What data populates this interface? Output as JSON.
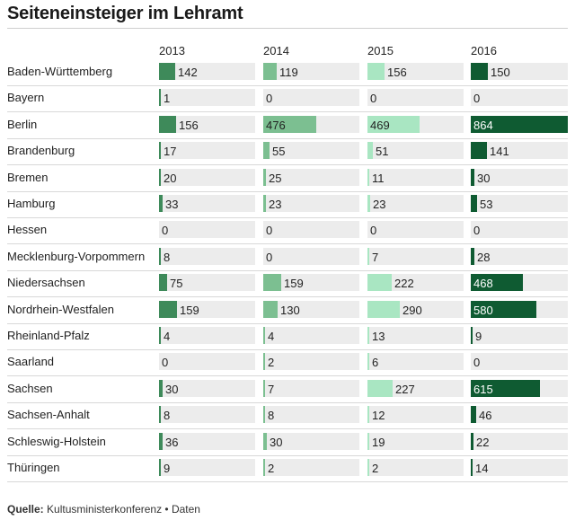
{
  "title": "Seiteneinsteiger im Lehramt",
  "source": {
    "label": "Quelle:",
    "text": "Kultusministerkonferenz • Daten"
  },
  "colors": {
    "2013": "#3e8a5a",
    "2014": "#7cbf91",
    "2015": "#a9e6c2",
    "2016": "#0f5b32",
    "cell_bg": "#ececec"
  },
  "chart_data": {
    "type": "table",
    "title": "Seiteneinsteiger im Lehramt",
    "years": [
      "2013",
      "2014",
      "2015",
      "2016"
    ],
    "max_value": 864,
    "rows": [
      {
        "state": "Baden-Württemberg",
        "values": [
          142,
          119,
          156,
          150
        ]
      },
      {
        "state": "Bayern",
        "values": [
          1,
          0,
          0,
          0
        ]
      },
      {
        "state": "Berlin",
        "values": [
          156,
          476,
          469,
          864
        ]
      },
      {
        "state": "Brandenburg",
        "values": [
          17,
          55,
          51,
          141
        ]
      },
      {
        "state": "Bremen",
        "values": [
          20,
          25,
          11,
          30
        ]
      },
      {
        "state": "Hamburg",
        "values": [
          33,
          23,
          23,
          53
        ]
      },
      {
        "state": "Hessen",
        "values": [
          0,
          0,
          0,
          0
        ]
      },
      {
        "state": "Mecklenburg-Vorpommern",
        "values": [
          8,
          0,
          7,
          28
        ]
      },
      {
        "state": "Niedersachsen",
        "values": [
          75,
          159,
          222,
          468
        ]
      },
      {
        "state": "Nordrhein-Westfalen",
        "values": [
          159,
          130,
          290,
          580
        ]
      },
      {
        "state": "Rheinland-Pfalz",
        "values": [
          4,
          4,
          13,
          9
        ]
      },
      {
        "state": "Saarland",
        "values": [
          0,
          2,
          6,
          0
        ]
      },
      {
        "state": "Sachsen",
        "values": [
          30,
          7,
          227,
          615
        ]
      },
      {
        "state": "Sachsen-Anhalt",
        "values": [
          8,
          8,
          12,
          46
        ]
      },
      {
        "state": "Schleswig-Holstein",
        "values": [
          36,
          30,
          19,
          22
        ]
      },
      {
        "state": "Thüringen",
        "values": [
          9,
          2,
          2,
          14
        ]
      }
    ]
  }
}
